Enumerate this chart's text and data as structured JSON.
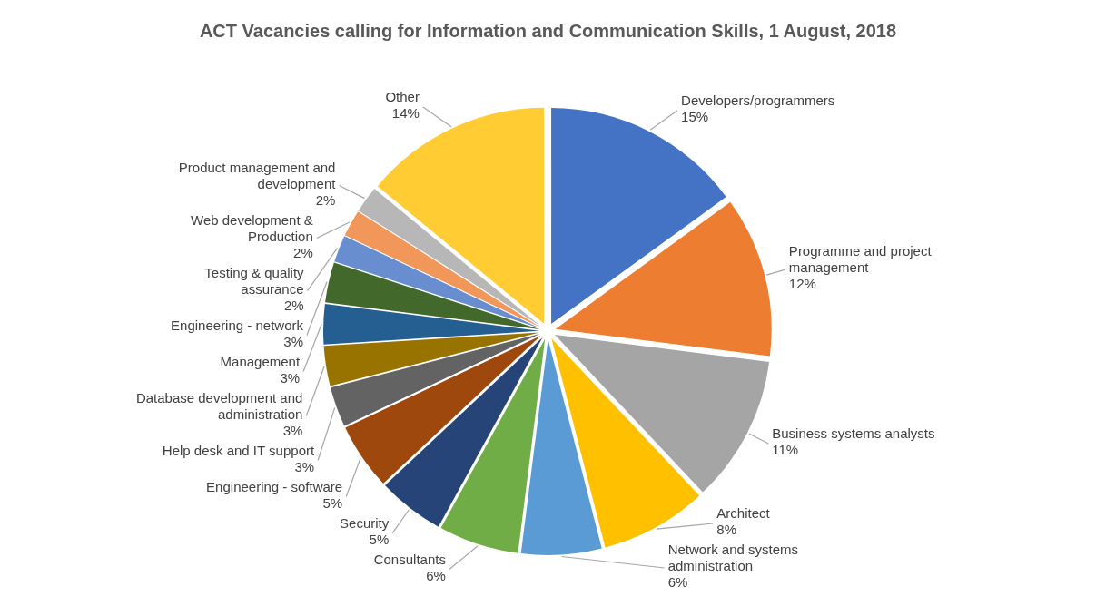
{
  "chart_data": {
    "type": "pie",
    "title": "ACT Vacancies calling for Information and Communication Skills, 1 August, 2018",
    "categories": [
      "Developers/programmers",
      "Programme and project management",
      "Business systems analysts",
      "Architect",
      "Network and systems administration",
      "Consultants",
      "Security",
      "Engineering - software",
      "Help desk and IT support",
      "Database development and administration",
      "Management",
      "Engineering - network",
      "Testing & quality assurance",
      "Web development & Production",
      "Product management and development",
      "Other"
    ],
    "values": [
      15,
      12,
      11,
      8,
      6,
      6,
      5,
      5,
      3,
      3,
      3,
      3,
      2,
      2,
      2,
      14
    ],
    "value_labels": [
      "15%",
      "12%",
      "11%",
      "8%",
      "6%",
      "6%",
      "5%",
      "5%",
      "3%",
      "3%",
      "3%",
      "3%",
      "2%",
      "2%",
      "2%",
      "14%"
    ],
    "colors": [
      "#4472c4",
      "#ed7d31",
      "#a5a5a5",
      "#ffc000",
      "#5b9bd5",
      "#70ad47",
      "#264478",
      "#9e480e",
      "#636363",
      "#997300",
      "#255e91",
      "#43682b",
      "#698ed0",
      "#f1975a",
      "#b7b7b7",
      "#ffcd33"
    ]
  }
}
